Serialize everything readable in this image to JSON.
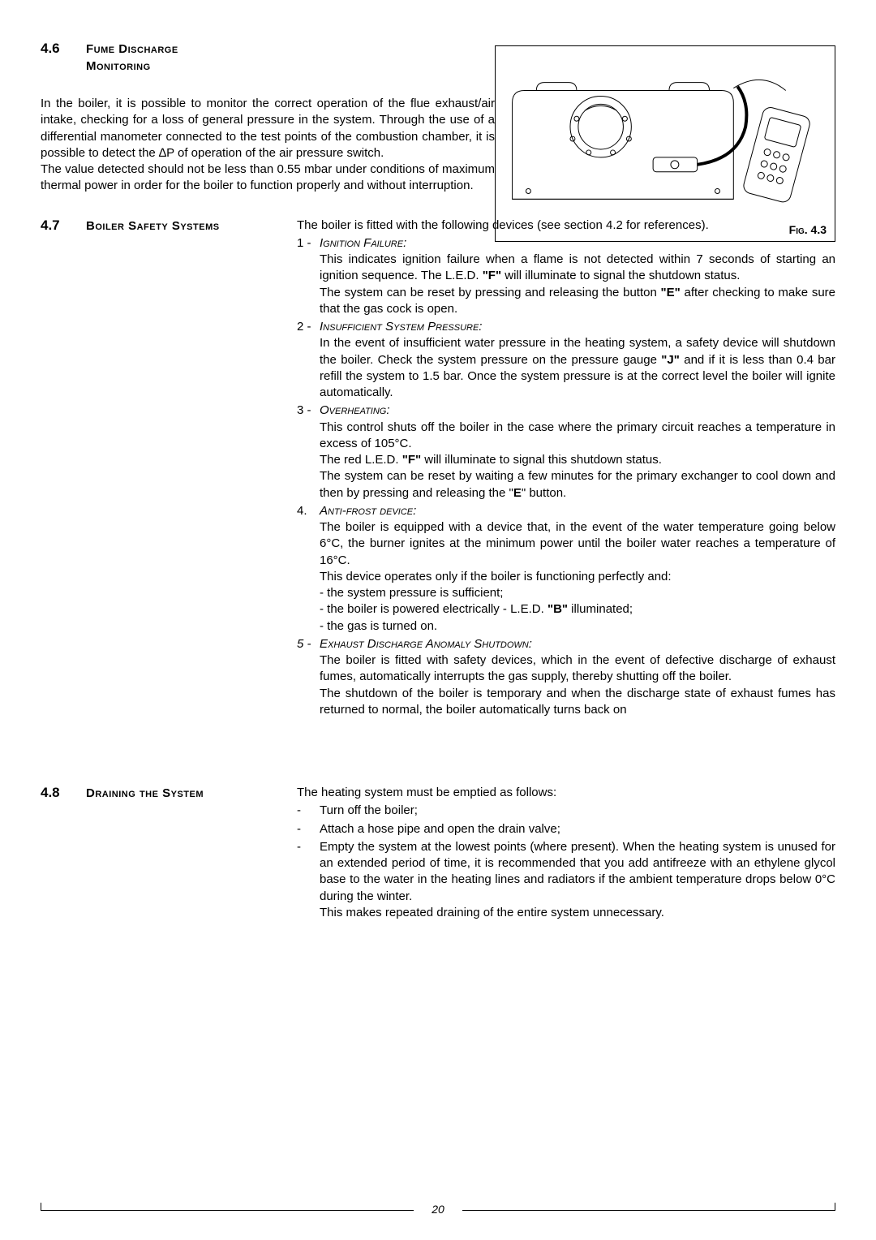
{
  "section46": {
    "num": "4.6",
    "title_line1": "Fume Discharge",
    "title_line2": "Monitoring",
    "para1": "In the boiler, it is possible to monitor the correct operation of the flue exhaust/air intake, checking for a loss of general pressure in the system. Through the use of a differential manometer connected to the test points of the combustion chamber, it is possible to detect the ∆P of operation of the air pressure switch.",
    "para2": "The value detected should not be less than 0.55 mbar under conditions of maximum thermal power in order for the boiler to function properly and without interruption."
  },
  "figLabel": "Fig. 4.3",
  "section47": {
    "num": "4.7",
    "title": "Boiler Safety Systems",
    "intro": "The boiler is fitted with the following devices (see section 4.2 for references).",
    "items": [
      {
        "num": "1 -",
        "heading": "Ignition Failure:",
        "body": "This indicates ignition failure when a flame is not detected within 7 seconds of starting an ignition sequence. The L.E.D. <span class=\"bold\">\"F\"</span> will illuminate to signal the shutdown status.",
        "body2": "The system can be reset by pressing and releasing the button <span class=\"bold\">\"E\"</span> after checking to make sure that the gas cock is open."
      },
      {
        "num": "2 -",
        "heading": "Insufficient System Pressure:",
        "body": "In the event of insufficient water pressure in the heating system, a safety device will shutdown the boiler. Check the system pressure on the pressure gauge <span class=\"bold\">\"J\"</span> and if it is less than 0.4 bar refill the system to 1.5 bar. Once the system pressure is at the correct level the boiler will ignite automatically."
      },
      {
        "num": "3 -",
        "heading": "Overheating:",
        "body": "This control shuts off the boiler in the case where the primary circuit reaches a temperature in excess of 105°C.",
        "body2": "The red L.E.D. <span class=\"bold\">\"F\"</span> will illuminate to signal this shutdown status.",
        "body3": "The system can be reset by waiting a few minutes for the primary exchanger to cool down and then by pressing and releasing the \"<span class=\"bold\">E</span>\" button."
      },
      {
        "num": "4.",
        "heading": "Anti-frost device:",
        "body": "The boiler is equipped with a device that, in the event of the water temperature going below 6°C, the burner ignites at the minimum power until the boiler water reaches a temperature of 16°C.",
        "body2": "This device operates only if the boiler is functioning perfectly and:",
        "dash1": "- the system pressure is sufficient;",
        "dash2": "- the boiler is powered electrically - L.E.D. <span class=\"bold\">\"B\"</span> illuminated;",
        "dash3": "- the gas is turned on."
      },
      {
        "num": "5 -",
        "heading": "Exhaust Discharge Anomaly Shutdown:",
        "allItalic": true,
        "body": "The boiler is fitted with safety devices, which in the event of defective discharge of exhaust fumes, automatically interrupts the gas supply, thereby shutting off the boiler.",
        "body2": "The shutdown of the boiler is temporary and when the discharge state of exhaust fumes has returned to normal, the boiler automatically turns back on"
      }
    ]
  },
  "section48": {
    "num": "4.8",
    "title": "Draining the System",
    "intro": "The heating system must be emptied as follows:",
    "items": [
      "Turn off the boiler;",
      "Attach a hose pipe and open the drain valve;",
      "Empty the system at the lowest points (where present). When the heating system is unused for an extended period of time, it is recommended that you add antifreeze with an ethylene glycol base to the water in the heating lines and radiators if the ambient temperature drops below 0°C during the winter."
    ],
    "closing": "This makes repeated draining of the entire system unnecessary."
  },
  "pageNum": "20"
}
